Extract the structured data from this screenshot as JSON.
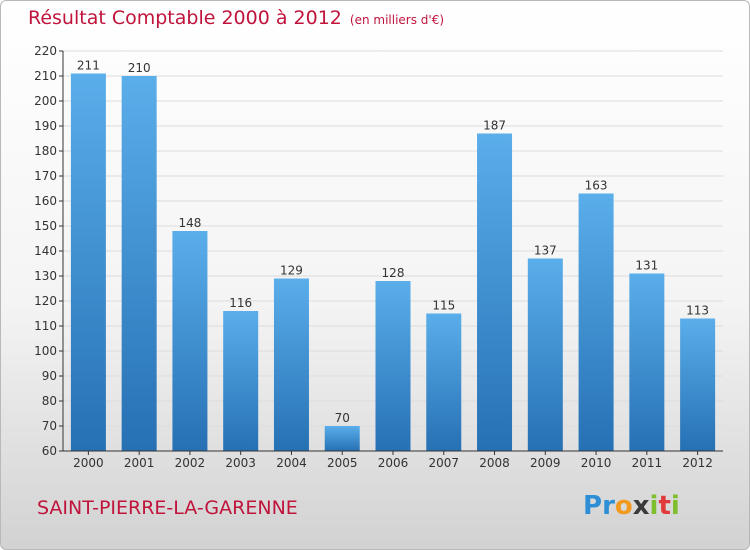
{
  "header": {
    "title": "Résultat Comptable 2000 à 2012",
    "subtitle": "(en milliers d'€)"
  },
  "footer": {
    "commune": "SAINT-PIERRE-LA-GARENNE",
    "logo_text": "Proxiti",
    "logo_letters": [
      "P",
      "r",
      "o",
      "x",
      "i",
      "t",
      "i"
    ]
  },
  "colors": {
    "title": "#c0143c",
    "bar_light": "#5aaeea",
    "bar_dark": "#2670b4",
    "grid": "#dcdcdc",
    "axis": "#333333"
  },
  "chart_data": {
    "type": "bar",
    "title": "Résultat Comptable 2000 à 2012",
    "subtitle": "(en milliers d'€)",
    "categories": [
      "2000",
      "2001",
      "2002",
      "2003",
      "2004",
      "2005",
      "2006",
      "2007",
      "2008",
      "2009",
      "2010",
      "2011",
      "2012"
    ],
    "values": [
      211,
      210,
      148,
      116,
      129,
      70,
      128,
      115,
      187,
      137,
      163,
      131,
      113
    ],
    "ylim": [
      60,
      220
    ],
    "yticks": [
      60,
      70,
      80,
      90,
      100,
      110,
      120,
      130,
      140,
      150,
      160,
      170,
      180,
      190,
      200,
      210,
      220
    ],
    "grid": true,
    "data_labels": true,
    "xlabel": "",
    "ylabel": ""
  }
}
